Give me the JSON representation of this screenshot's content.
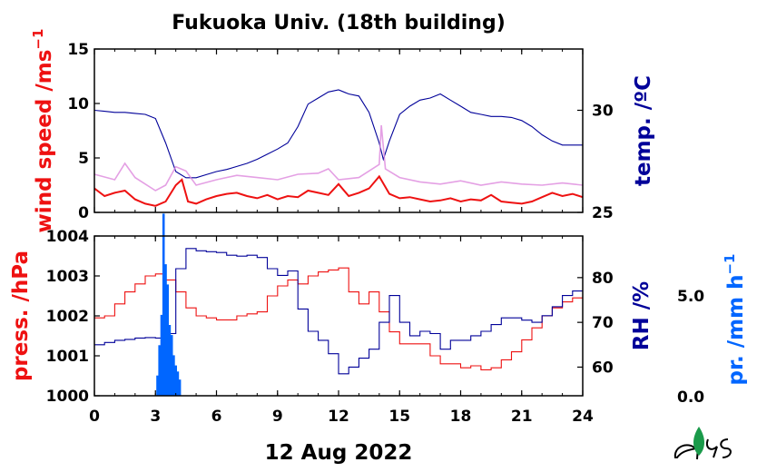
{
  "title": "Fukuoka Univ. (18th building)",
  "date_label": "12 Aug 2022",
  "colors": {
    "wind": "#ee1111",
    "wind_gust": "#dd88dd",
    "temp": "#000099",
    "press": "#ee1111",
    "rh": "#000099",
    "precip": "#0066ff",
    "logo": "#1a9a4a"
  },
  "chart_data": [
    {
      "type": "line",
      "panel": "top",
      "x_ticks": [
        0,
        3,
        6,
        9,
        12,
        15,
        18,
        21,
        24
      ],
      "xlim": [
        0,
        24
      ],
      "left_axis": {
        "label": "wind speed /ms",
        "label_sup": "−1",
        "ylim": [
          0,
          15
        ],
        "ticks": [
          0,
          5,
          10,
          15
        ],
        "color": "#ee1111"
      },
      "right_axis": {
        "label": "temp. /ºC",
        "ylim": [
          25,
          33
        ],
        "ticks": [
          25,
          30
        ],
        "color": "#000099"
      },
      "series": [
        {
          "key": "temp",
          "axis": "right",
          "x": [
            0,
            0.5,
            1,
            1.5,
            2,
            2.5,
            3,
            3.5,
            4,
            4.5,
            5,
            5.5,
            6,
            6.5,
            7,
            7.5,
            8,
            8.5,
            9,
            9.5,
            10,
            10.5,
            11,
            11.5,
            12,
            12.5,
            13,
            13.5,
            14,
            14.2,
            14.5,
            15,
            15.5,
            16,
            16.5,
            17,
            17.5,
            18,
            18.5,
            19,
            19.5,
            20,
            20.5,
            21,
            21.5,
            22,
            22.5,
            23,
            23.5,
            24
          ],
          "y": [
            30.0,
            29.95,
            29.9,
            29.9,
            29.85,
            29.8,
            29.6,
            28.4,
            27.0,
            26.7,
            26.7,
            26.85,
            27.0,
            27.1,
            27.25,
            27.4,
            27.6,
            27.85,
            28.1,
            28.4,
            29.2,
            30.3,
            30.6,
            30.9,
            31.0,
            30.8,
            30.7,
            29.9,
            28.4,
            27.6,
            28.5,
            29.8,
            30.2,
            30.5,
            30.6,
            30.8,
            30.5,
            30.2,
            29.9,
            29.8,
            29.7,
            29.7,
            29.65,
            29.5,
            29.2,
            28.8,
            28.5,
            28.3,
            28.3,
            28.3
          ]
        },
        {
          "key": "wind_gust",
          "axis": "left",
          "x": [
            0,
            1,
            1.5,
            2,
            3,
            3.5,
            4,
            4.5,
            5,
            6,
            7,
            8,
            9,
            10,
            11,
            11.5,
            12,
            13,
            14,
            14.1,
            14.3,
            15,
            16,
            17,
            18,
            19,
            20,
            21,
            22,
            23,
            24
          ],
          "y": [
            3.5,
            3.0,
            4.5,
            3.2,
            2.0,
            2.5,
            4.2,
            3.8,
            2.5,
            3.0,
            3.4,
            3.2,
            3.0,
            3.5,
            3.6,
            4.0,
            3.0,
            3.2,
            4.4,
            8.0,
            4.0,
            3.2,
            2.8,
            2.6,
            2.9,
            2.5,
            2.8,
            2.6,
            2.5,
            2.7,
            2.5
          ]
        },
        {
          "key": "wind",
          "axis": "left",
          "x": [
            0,
            0.5,
            1,
            1.5,
            2,
            2.5,
            3,
            3.5,
            4,
            4.3,
            4.6,
            5,
            5.5,
            6,
            6.5,
            7,
            7.5,
            8,
            8.5,
            9,
            9.5,
            10,
            10.5,
            11,
            11.5,
            12,
            12.5,
            13,
            13.5,
            14,
            14.5,
            15,
            15.5,
            16,
            16.5,
            17,
            17.5,
            18,
            18.5,
            19,
            19.5,
            20,
            20.5,
            21,
            21.5,
            22,
            22.5,
            23,
            23.5,
            24
          ],
          "y": [
            2.2,
            1.5,
            1.8,
            2.0,
            1.2,
            0.8,
            0.6,
            1.0,
            2.5,
            3.0,
            1.0,
            0.8,
            1.2,
            1.5,
            1.7,
            1.8,
            1.5,
            1.3,
            1.6,
            1.2,
            1.5,
            1.4,
            2.0,
            1.8,
            1.6,
            2.6,
            1.5,
            1.8,
            2.2,
            3.3,
            1.7,
            1.3,
            1.4,
            1.2,
            1.0,
            1.1,
            1.3,
            1.0,
            1.2,
            1.1,
            1.6,
            1.0,
            0.9,
            0.8,
            1.0,
            1.4,
            1.8,
            1.5,
            1.7,
            1.4
          ]
        }
      ]
    },
    {
      "type": "line",
      "panel": "bottom",
      "x_ticks": [
        0,
        3,
        6,
        9,
        12,
        15,
        18,
        21,
        24
      ],
      "xlim": [
        0,
        24
      ],
      "left_axis": {
        "label": "press. /hPa",
        "ylim": [
          1000,
          1004
        ],
        "ticks": [
          1000,
          1001,
          1002,
          1003,
          1004
        ],
        "color": "#ee1111"
      },
      "right_axis": {
        "label": "RH /%",
        "ylim": [
          53.6,
          89.3
        ],
        "ticks": [
          60,
          70,
          80
        ],
        "color": "#000099"
      },
      "third_axis": {
        "label": "pr. /mm h",
        "label_sup": "−1",
        "ticks": [
          "0.0",
          "5.0"
        ],
        "color": "#0066ff"
      },
      "series": [
        {
          "key": "press",
          "axis": "left",
          "x": [
            0,
            0.5,
            1,
            1.5,
            2,
            2.5,
            3,
            3.5,
            4,
            4.5,
            5,
            5.5,
            6,
            6.5,
            7,
            7.5,
            8,
            8.5,
            9,
            9.5,
            10,
            10.5,
            11,
            11.5,
            12,
            12.5,
            13,
            13.5,
            14,
            14.5,
            15,
            15.5,
            16,
            16.5,
            17,
            17.5,
            18,
            18.5,
            19,
            19.5,
            20,
            20.5,
            21,
            21.5,
            22,
            22.5,
            23,
            23.5,
            24
          ],
          "y": [
            1001.95,
            1002.0,
            1002.3,
            1002.6,
            1002.8,
            1003.0,
            1003.05,
            1002.9,
            1002.6,
            1002.2,
            1002.0,
            1001.95,
            1001.9,
            1001.9,
            1002.0,
            1002.05,
            1002.1,
            1002.5,
            1002.75,
            1002.9,
            1002.8,
            1003.0,
            1003.1,
            1003.15,
            1003.2,
            1002.6,
            1002.3,
            1002.6,
            1002.1,
            1001.6,
            1001.3,
            1001.3,
            1001.3,
            1001.0,
            1000.8,
            1000.8,
            1000.7,
            1000.75,
            1000.65,
            1000.7,
            1000.9,
            1001.1,
            1001.4,
            1001.7,
            1002.0,
            1002.2,
            1002.35,
            1002.45,
            1002.45
          ]
        },
        {
          "key": "rh",
          "axis": "right",
          "x": [
            0,
            0.5,
            1,
            1.5,
            2,
            2.5,
            3,
            3.5,
            4,
            4.5,
            5,
            5.5,
            6,
            6.5,
            7,
            7.5,
            8,
            8.5,
            9,
            9.5,
            10,
            10.5,
            11,
            11.5,
            12,
            12.5,
            13,
            13.5,
            14,
            14.5,
            15,
            15.5,
            16,
            16.5,
            17,
            17.5,
            18,
            18.5,
            19,
            19.5,
            20,
            20.5,
            21,
            21.5,
            22,
            22.5,
            23,
            23.5,
            24
          ],
          "y": [
            65.0,
            65.5,
            66.0,
            66.2,
            66.5,
            66.6,
            66.5,
            67.5,
            82.0,
            86.5,
            86.0,
            85.8,
            85.6,
            85.0,
            84.8,
            85.0,
            84.5,
            82.0,
            80.5,
            81.5,
            73.0,
            68.0,
            66.0,
            63.0,
            58.5,
            60.0,
            62.0,
            64.0,
            70.0,
            76.0,
            70.0,
            67.0,
            68.0,
            67.5,
            64.0,
            66.0,
            66.0,
            67.0,
            68.0,
            69.5,
            71.0,
            71.0,
            70.5,
            70.0,
            71.5,
            73.5,
            76.0,
            77.0,
            77.0
          ]
        },
        {
          "key": "precip",
          "axis": "third",
          "type": "bar",
          "x": [
            3.1,
            3.2,
            3.3,
            3.4,
            3.5,
            3.6,
            3.7,
            3.8,
            3.9,
            4.0,
            4.1,
            4.2
          ],
          "y": [
            1.0,
            2.5,
            4.0,
            9.0,
            6.5,
            5.5,
            3.5,
            3.0,
            2.0,
            1.5,
            1.2,
            0.8
          ]
        }
      ]
    }
  ]
}
